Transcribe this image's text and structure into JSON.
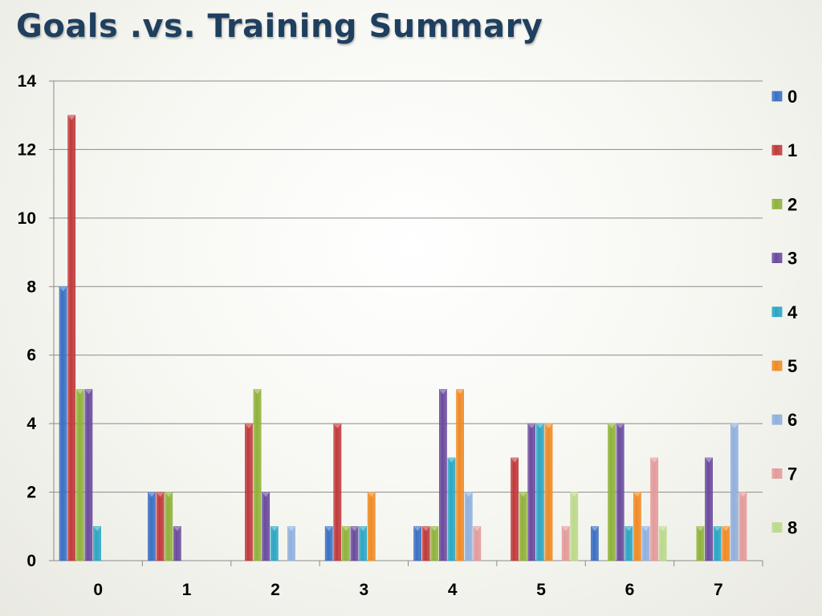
{
  "slide": {
    "title": "Goals .vs. Training Summary"
  },
  "chart_data": {
    "type": "bar",
    "title": "",
    "xlabel": "",
    "ylabel": "",
    "categories": [
      "0",
      "1",
      "2",
      "3",
      "4",
      "5",
      "6",
      "7"
    ],
    "ylim": [
      0,
      14
    ],
    "yticks": [
      "0",
      "2",
      "4",
      "6",
      "8",
      "10",
      "12",
      "14"
    ],
    "grid": true,
    "legend_position": "right",
    "series": [
      {
        "name": "0",
        "color": "#3a6fc4",
        "values": [
          8,
          2,
          0,
          1,
          1,
          0,
          1,
          0
        ]
      },
      {
        "name": "1",
        "color": "#c0393b",
        "values": [
          13,
          2,
          4,
          4,
          1,
          3,
          0,
          0
        ]
      },
      {
        "name": "2",
        "color": "#8fb23a",
        "values": [
          5,
          2,
          5,
          1,
          1,
          2,
          4,
          1
        ]
      },
      {
        "name": "3",
        "color": "#6a4a9e",
        "values": [
          5,
          1,
          2,
          1,
          5,
          4,
          4,
          3
        ]
      },
      {
        "name": "4",
        "color": "#2aa6c4",
        "values": [
          1,
          0,
          1,
          1,
          3,
          4,
          1,
          1
        ]
      },
      {
        "name": "5",
        "color": "#f08a24",
        "values": [
          0,
          0,
          0,
          2,
          5,
          4,
          2,
          1
        ]
      },
      {
        "name": "6",
        "color": "#8fb0de",
        "values": [
          0,
          0,
          1,
          0,
          2,
          0,
          1,
          4
        ]
      },
      {
        "name": "7",
        "color": "#e49a9a",
        "values": [
          0,
          0,
          0,
          0,
          1,
          1,
          3,
          2
        ]
      },
      {
        "name": "8",
        "color": "#bcd98a",
        "values": [
          0,
          0,
          0,
          0,
          0,
          2,
          1,
          0
        ]
      }
    ]
  }
}
